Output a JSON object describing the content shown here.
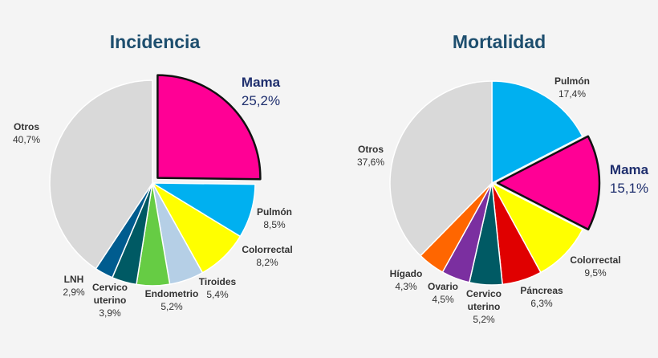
{
  "chart_data": [
    {
      "type": "pie",
      "title": "Incidencia",
      "start": "12 o'clock, clockwise",
      "categories": [
        "Mama",
        "Pulmón",
        "Colorrectal",
        "Tiroides",
        "Endometrio",
        "Cervico uterino",
        "LNH",
        "Otros"
      ],
      "label_lines": [
        [
          "Mama"
        ],
        [
          "Pulmón"
        ],
        [
          "Colorrectal"
        ],
        [
          "Tiroides"
        ],
        [
          "Endometrio"
        ],
        [
          "Cervico",
          "uterino"
        ],
        [
          "LNH"
        ],
        [
          "Otros"
        ]
      ],
      "values": [
        25.2,
        8.5,
        8.2,
        5.4,
        5.2,
        3.9,
        2.9,
        40.7
      ],
      "value_labels": [
        "25,2%",
        "8,5%",
        "8,2%",
        "5,4%",
        "5,2%",
        "3,9%",
        "2,9%",
        "40,7%"
      ],
      "colors": [
        "#ff0095",
        "#00b0f0",
        "#ffff00",
        "#b5cfe6",
        "#66cc44",
        "#005a64",
        "#005c8f",
        "#d9d9d9"
      ],
      "highlighted": "Mama",
      "exploded": [
        "Mama"
      ]
    },
    {
      "type": "pie",
      "title": "Mortalidad",
      "start": "12 o'clock, clockwise",
      "categories": [
        "Pulmón",
        "Mama",
        "Colorrectal",
        "Páncreas",
        "Cervico uterino",
        "Ovario",
        "Hígado",
        "Otros"
      ],
      "label_lines": [
        [
          "Pulmón"
        ],
        [
          "Mama"
        ],
        [
          "Colorrectal"
        ],
        [
          "Páncreas"
        ],
        [
          "Cervico",
          "uterino"
        ],
        [
          "Ovario"
        ],
        [
          "Hígado"
        ],
        [
          "Otros"
        ]
      ],
      "values": [
        17.4,
        15.1,
        9.5,
        6.3,
        5.2,
        4.5,
        4.3,
        37.6
      ],
      "value_labels": [
        "17,4%",
        "15,1%",
        "9,5%",
        "6,3%",
        "5,2%",
        "4,5%",
        "4,3%",
        "37,6%"
      ],
      "colors": [
        "#00b0f0",
        "#ff0095",
        "#ffff00",
        "#e00000",
        "#005a64",
        "#7b2fa0",
        "#ff6600",
        "#d9d9d9"
      ],
      "highlighted": "Mama",
      "exploded": [
        "Mama"
      ]
    }
  ]
}
